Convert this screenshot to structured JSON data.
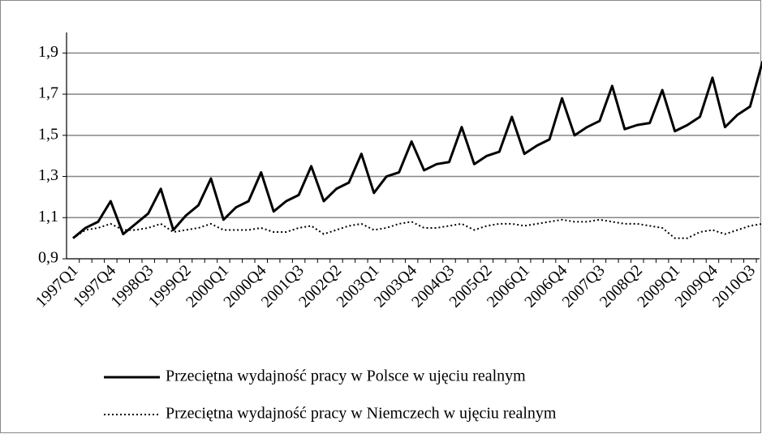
{
  "chart_data": {
    "type": "line",
    "categories": [
      "1997Q1",
      null,
      null,
      "1997Q4",
      null,
      null,
      "1998Q3",
      null,
      null,
      "1999Q2",
      null,
      null,
      "2000Q1",
      null,
      null,
      "2000Q4",
      null,
      null,
      "2001Q3",
      null,
      null,
      "2002Q2",
      null,
      null,
      "2003Q1",
      null,
      null,
      "2003Q4",
      null,
      null,
      "2004Q3",
      null,
      null,
      "2005Q2",
      null,
      null,
      "2006Q1",
      null,
      null,
      "2006Q4",
      null,
      null,
      "2007Q3",
      null,
      null,
      "2008Q2",
      null,
      null,
      "2009Q1",
      null,
      null,
      "2009Q4",
      null,
      null,
      "2010Q3",
      null
    ],
    "series": [
      {
        "name": "Przeciętna wydajność pracy w Polsce w ujęciu realnym",
        "color": "#000000",
        "dash": "solid",
        "values": [
          1.0,
          1.05,
          1.08,
          1.18,
          1.02,
          1.07,
          1.12,
          1.24,
          1.04,
          1.11,
          1.16,
          1.29,
          1.09,
          1.15,
          1.18,
          1.32,
          1.13,
          1.18,
          1.21,
          1.35,
          1.18,
          1.24,
          1.27,
          1.41,
          1.22,
          1.3,
          1.32,
          1.47,
          1.33,
          1.36,
          1.37,
          1.54,
          1.36,
          1.4,
          1.42,
          1.59,
          1.41,
          1.45,
          1.48,
          1.68,
          1.5,
          1.54,
          1.57,
          1.74,
          1.53,
          1.55,
          1.56,
          1.72,
          1.52,
          1.55,
          1.59,
          1.78,
          1.54,
          1.6,
          1.64,
          1.86
        ]
      },
      {
        "name": "Przeciętna wydajność pracy w Niemczech w ujęciu realnym",
        "color": "#000000",
        "dash": "dotted",
        "values": [
          1.0,
          1.04,
          1.05,
          1.07,
          1.04,
          1.04,
          1.05,
          1.07,
          1.03,
          1.04,
          1.05,
          1.07,
          1.04,
          1.04,
          1.04,
          1.05,
          1.03,
          1.03,
          1.05,
          1.06,
          1.02,
          1.04,
          1.06,
          1.07,
          1.04,
          1.05,
          1.07,
          1.08,
          1.05,
          1.05,
          1.06,
          1.07,
          1.04,
          1.06,
          1.07,
          1.07,
          1.06,
          1.07,
          1.08,
          1.09,
          1.08,
          1.08,
          1.09,
          1.08,
          1.07,
          1.07,
          1.06,
          1.05,
          1.0,
          1.0,
          1.03,
          1.04,
          1.02,
          1.04,
          1.06,
          1.07
        ]
      }
    ],
    "ylim": [
      0.9,
      2.0
    ],
    "yticks": [
      {
        "value": 0.9,
        "label": "0,9"
      },
      {
        "value": 1.1,
        "label": "1,1"
      },
      {
        "value": 1.3,
        "label": "1,3"
      },
      {
        "value": 1.5,
        "label": "1,5"
      },
      {
        "value": 1.7,
        "label": "1,7"
      },
      {
        "value": 1.9,
        "label": "1,9"
      }
    ],
    "grid": true,
    "legend": "bottom"
  }
}
